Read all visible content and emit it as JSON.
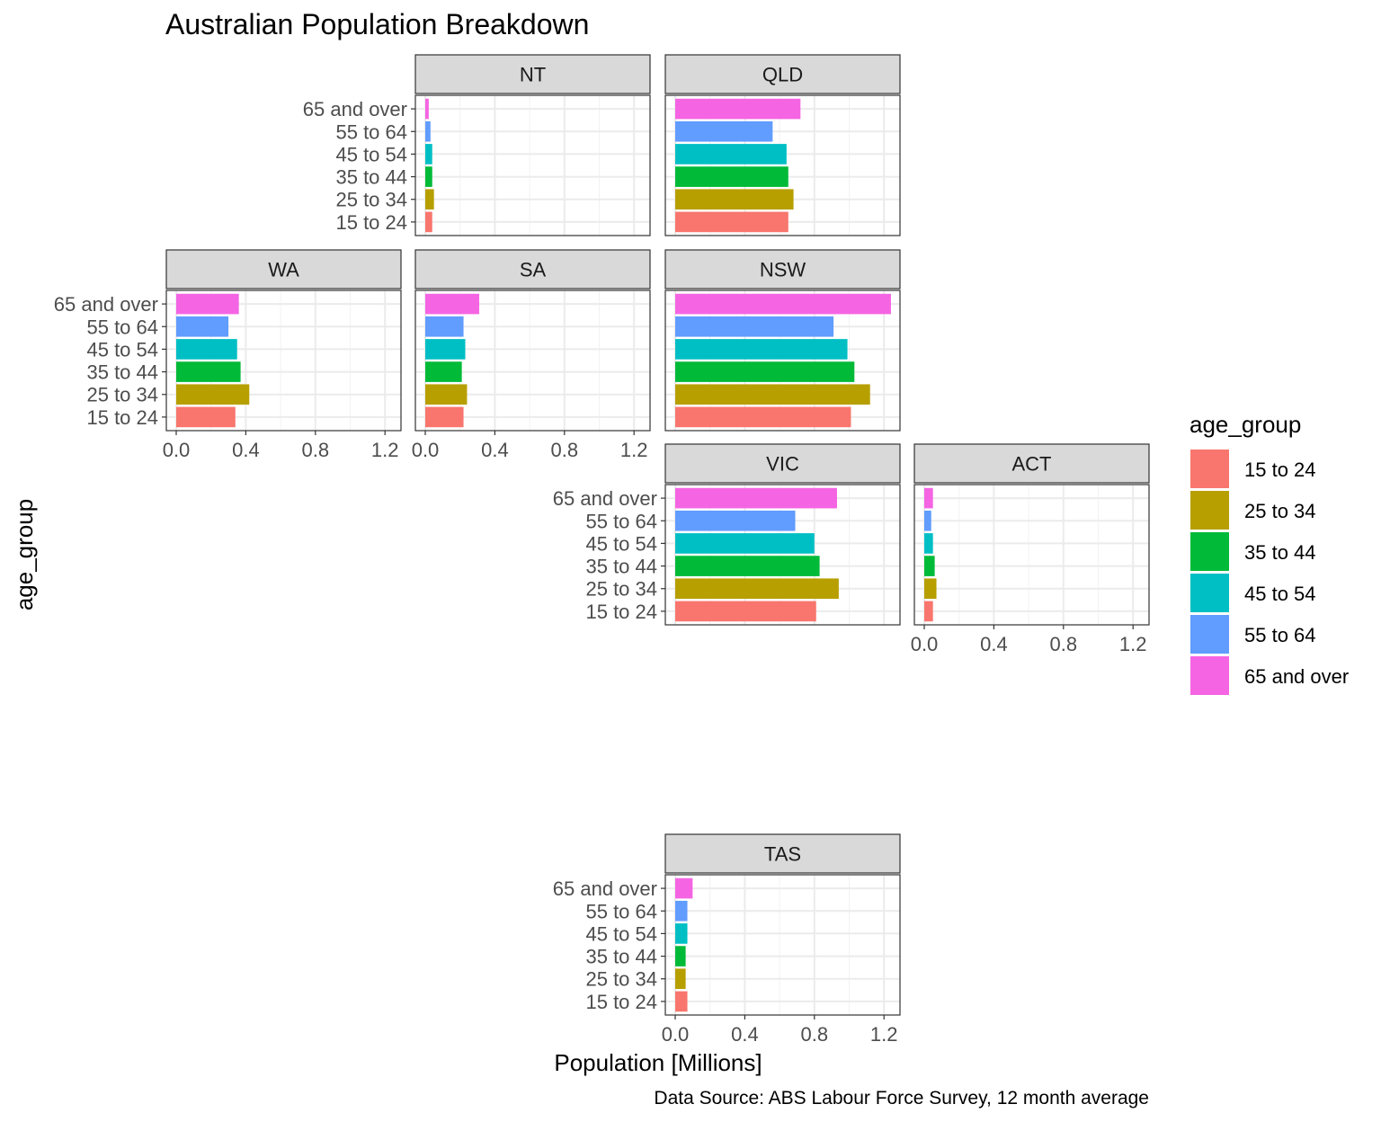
{
  "chart_data": {
    "type": "bar",
    "orientation": "horizontal",
    "title": "Australian Population Breakdown",
    "xlabel": "Population [Millions]",
    "ylabel": "age_group",
    "caption": "Data Source: ABS Labour Force Survey, 12 month average",
    "xlim": [
      0,
      1.3
    ],
    "x_ticks": [
      0.0,
      0.4,
      0.8,
      1.2
    ],
    "x_tick_labels": [
      "0.0",
      "0.4",
      "0.8",
      "1.2"
    ],
    "grid": true,
    "categories": [
      "15 to 24",
      "25 to 34",
      "35 to 44",
      "45 to 54",
      "55 to 64",
      "65 and over"
    ],
    "legend": {
      "title": "age_group",
      "position": "right",
      "entries": [
        "15 to 24",
        "25 to 34",
        "35 to 44",
        "45 to 54",
        "55 to 64",
        "65 and over"
      ]
    },
    "colors": [
      "#F8766D",
      "#B79F00",
      "#00BA38",
      "#00BFC4",
      "#619CFF",
      "#F564E3"
    ],
    "panels": [
      {
        "name": "NT",
        "values": [
          0.04,
          0.05,
          0.04,
          0.04,
          0.03,
          0.02
        ]
      },
      {
        "name": "QLD",
        "values": [
          0.65,
          0.68,
          0.65,
          0.64,
          0.56,
          0.72
        ]
      },
      {
        "name": "WA",
        "values": [
          0.34,
          0.42,
          0.37,
          0.35,
          0.3,
          0.36
        ]
      },
      {
        "name": "SA",
        "values": [
          0.22,
          0.24,
          0.21,
          0.23,
          0.22,
          0.31
        ]
      },
      {
        "name": "NSW",
        "values": [
          1.01,
          1.12,
          1.03,
          0.99,
          0.91,
          1.24
        ]
      },
      {
        "name": "VIC",
        "values": [
          0.81,
          0.94,
          0.83,
          0.8,
          0.69,
          0.93
        ]
      },
      {
        "name": "ACT",
        "values": [
          0.05,
          0.07,
          0.06,
          0.05,
          0.04,
          0.05
        ]
      },
      {
        "name": "TAS",
        "values": [
          0.07,
          0.06,
          0.06,
          0.07,
          0.07,
          0.1
        ]
      }
    ]
  }
}
